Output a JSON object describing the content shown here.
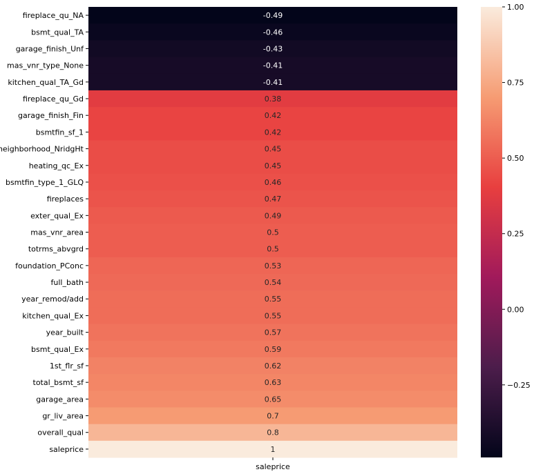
{
  "chart_data": {
    "type": "heatmap",
    "columns": [
      "saleprice"
    ],
    "rows": [
      "fireplace_qu_NA",
      "bsmt_qual_TA",
      "garage_finish_Unf",
      "mas_vnr_type_None",
      "kitchen_qual_TA_Gd",
      "fireplace_qu_Gd",
      "garage_finish_Fin",
      "bsmtfin_sf_1",
      "neighborhood_NridgHt",
      "heating_qc_Ex",
      "bsmtfin_type_1_GLQ",
      "fireplaces",
      "exter_qual_Ex",
      "mas_vnr_area",
      "totrms_abvgrd",
      "foundation_PConc",
      "full_bath",
      "year_remod/add",
      "kitchen_qual_Ex",
      "year_built",
      "bsmt_qual_Ex",
      "1st_flr_sf",
      "total_bsmt_sf",
      "garage_area",
      "gr_liv_area",
      "overall_qual",
      "saleprice"
    ],
    "values": [
      -0.49,
      -0.46,
      -0.43,
      -0.41,
      -0.41,
      0.38,
      0.42,
      0.42,
      0.45,
      0.45,
      0.46,
      0.47,
      0.49,
      0.5,
      0.5,
      0.53,
      0.54,
      0.55,
      0.55,
      0.57,
      0.59,
      0.62,
      0.63,
      0.65,
      0.7,
      0.8,
      1
    ],
    "value_labels": [
      "-0.49",
      "-0.46",
      "-0.43",
      "-0.41",
      "-0.41",
      "0.38",
      "0.42",
      "0.42",
      "0.45",
      "0.45",
      "0.46",
      "0.47",
      "0.49",
      "0.5",
      "0.5",
      "0.53",
      "0.54",
      "0.55",
      "0.55",
      "0.57",
      "0.59",
      "0.62",
      "0.63",
      "0.65",
      "0.7",
      "0.8",
      "1"
    ],
    "colorbar": {
      "vmin": -0.49,
      "vmax": 1.0,
      "ticks": [
        1.0,
        0.75,
        0.5,
        0.25,
        0.0,
        -0.25
      ],
      "tick_labels": [
        "1.00",
        "0.75",
        "0.50",
        "0.25",
        "0.00",
        "−0.25"
      ],
      "colormap": "rocket",
      "stops": [
        "#03051a",
        "#4c1d4b",
        "#a11a5b",
        "#e83f3f",
        "#f69c73",
        "#faebdd"
      ]
    },
    "dark_text_color": "#262626",
    "light_text_color": "#ffffff"
  }
}
